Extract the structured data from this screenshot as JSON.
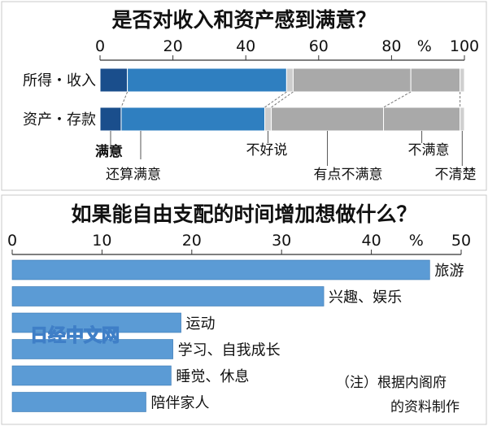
{
  "chart_data": [
    {
      "type": "bar",
      "orientation": "horizontal",
      "stacked": true,
      "title": "是否对收入和资产感到满意？",
      "unit": "%",
      "xlim": [
        0,
        100
      ],
      "ticks": [
        0,
        20,
        40,
        60,
        80,
        100
      ],
      "categories": [
        "所得・收入",
        "资产・存款"
      ],
      "series": [
        {
          "name": "满意",
          "values": [
            7.5,
            5.8
          ],
          "color": "#1a4e8c"
        },
        {
          "name": "还算满意",
          "values": [
            43.7,
            39.4
          ],
          "color": "#2f7fc0"
        },
        {
          "name": "不好说",
          "values": [
            1.8,
            1.8
          ],
          "color": "#cdcdcd"
        },
        {
          "name": "有点不满意",
          "values": [
            32.3,
            30.8
          ],
          "color": "#a9a9a9"
        },
        {
          "name": "不满意",
          "values": [
            13.5,
            21.0
          ],
          "color": "#a9a9a9"
        },
        {
          "name": "不清楚",
          "values": [
            1.2,
            1.2
          ],
          "color": "#cfcfcf"
        }
      ]
    },
    {
      "type": "bar",
      "orientation": "horizontal",
      "title": "如果能自由支配的时间增加想做什么？",
      "unit": "%",
      "xlim": [
        0,
        50
      ],
      "ticks": [
        0,
        10,
        20,
        30,
        40,
        50
      ],
      "categories": [
        "旅游",
        "兴趣、娱乐",
        "运动",
        "学习、自我成长",
        "睡觉、休息",
        "陪伴家人"
      ],
      "values": [
        46.5,
        34.7,
        18.8,
        17.9,
        17.7,
        14.9
      ],
      "color": "#5b9bd5"
    }
  ],
  "note": [
    "（注）根据内阁府",
    "的资料制作"
  ],
  "watermark": "日经中文网",
  "colors": {
    "frame": "#c8c8c8",
    "axis": "#333333",
    "legend_line": "#555555"
  }
}
